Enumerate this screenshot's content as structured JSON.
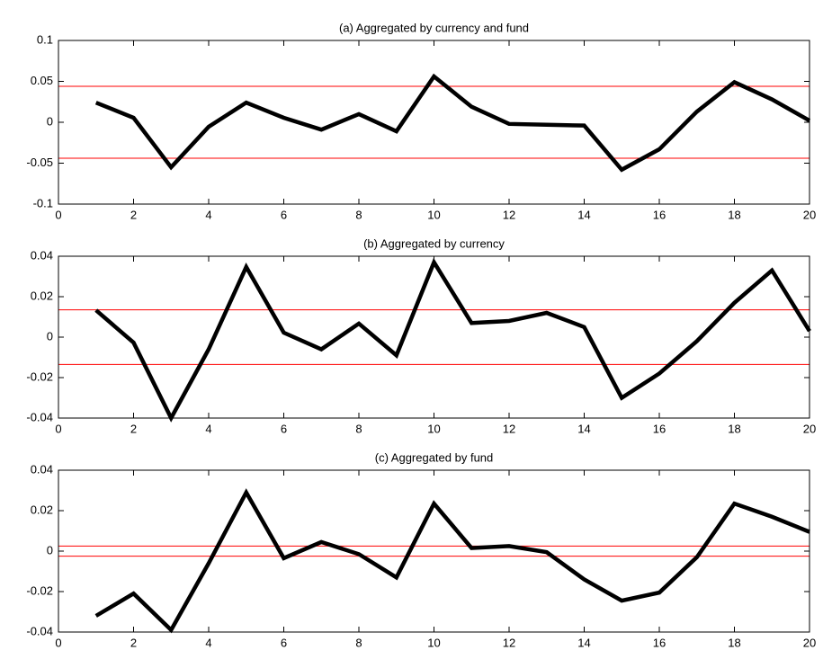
{
  "chart_data": [
    {
      "type": "line",
      "title": "(a) Aggregated by currency and fund",
      "x": [
        1,
        2,
        3,
        4,
        5,
        6,
        7,
        8,
        9,
        10,
        11,
        12,
        13,
        14,
        15,
        16,
        17,
        18,
        19,
        20
      ],
      "series": [
        {
          "color": "#000000",
          "values": [
            0.024,
            0.0055,
            -0.055,
            -0.0055,
            0.024,
            0.0055,
            -0.009,
            0.01,
            -0.011,
            0.056,
            0.019,
            -0.002,
            -0.003,
            -0.004,
            -0.058,
            -0.033,
            0.013,
            0.049,
            0.028,
            0.002
          ]
        }
      ],
      "reference_lines": {
        "color": "#ff0000",
        "values": [
          0.044,
          -0.044
        ]
      },
      "xlim": [
        0,
        20
      ],
      "xticks": [
        0,
        2,
        4,
        6,
        8,
        10,
        12,
        14,
        16,
        18,
        20
      ],
      "ylim": [
        -0.1,
        0.1
      ],
      "yticks": [
        -0.1,
        -0.05,
        0,
        0.05,
        0.1
      ]
    },
    {
      "type": "line",
      "title": "(b) Aggregated by currency",
      "x": [
        1,
        2,
        3,
        4,
        5,
        6,
        7,
        8,
        9,
        10,
        11,
        12,
        13,
        14,
        15,
        16,
        17,
        18,
        19,
        20
      ],
      "series": [
        {
          "color": "#000000",
          "values": [
            0.0133,
            -0.0027,
            -0.04,
            -0.006,
            0.0347,
            0.0022,
            -0.006,
            0.0067,
            -0.009,
            0.037,
            0.007,
            0.008,
            0.012,
            0.005,
            -0.03,
            -0.018,
            -0.002,
            0.017,
            0.033,
            0.003
          ]
        }
      ],
      "reference_lines": {
        "color": "#ff0000",
        "values": [
          0.0135,
          -0.0135
        ]
      },
      "xlim": [
        0,
        20
      ],
      "xticks": [
        0,
        2,
        4,
        6,
        8,
        10,
        12,
        14,
        16,
        18,
        20
      ],
      "ylim": [
        -0.04,
        0.04
      ],
      "yticks": [
        -0.04,
        -0.02,
        0,
        0.02,
        0.04
      ]
    },
    {
      "type": "line",
      "title": "(c) Aggregated by fund",
      "x": [
        1,
        2,
        3,
        4,
        5,
        6,
        7,
        8,
        9,
        10,
        11,
        12,
        13,
        14,
        15,
        16,
        17,
        18,
        19,
        20
      ],
      "series": [
        {
          "color": "#000000",
          "values": [
            -0.032,
            -0.021,
            -0.039,
            -0.006,
            0.029,
            -0.0035,
            0.0045,
            -0.0015,
            -0.013,
            0.0235,
            0.0015,
            0.0025,
            -0.0005,
            -0.014,
            -0.0245,
            -0.0205,
            -0.003,
            0.0235,
            0.017,
            0.0095
          ]
        }
      ],
      "reference_lines": {
        "color": "#ff0000",
        "values": [
          0.0025,
          -0.0025
        ]
      },
      "xlim": [
        0,
        20
      ],
      "xticks": [
        0,
        2,
        4,
        6,
        8,
        10,
        12,
        14,
        16,
        18,
        20
      ],
      "ylim": [
        -0.04,
        0.04
      ],
      "yticks": [
        -0.04,
        -0.02,
        0,
        0.02,
        0.04
      ]
    }
  ]
}
